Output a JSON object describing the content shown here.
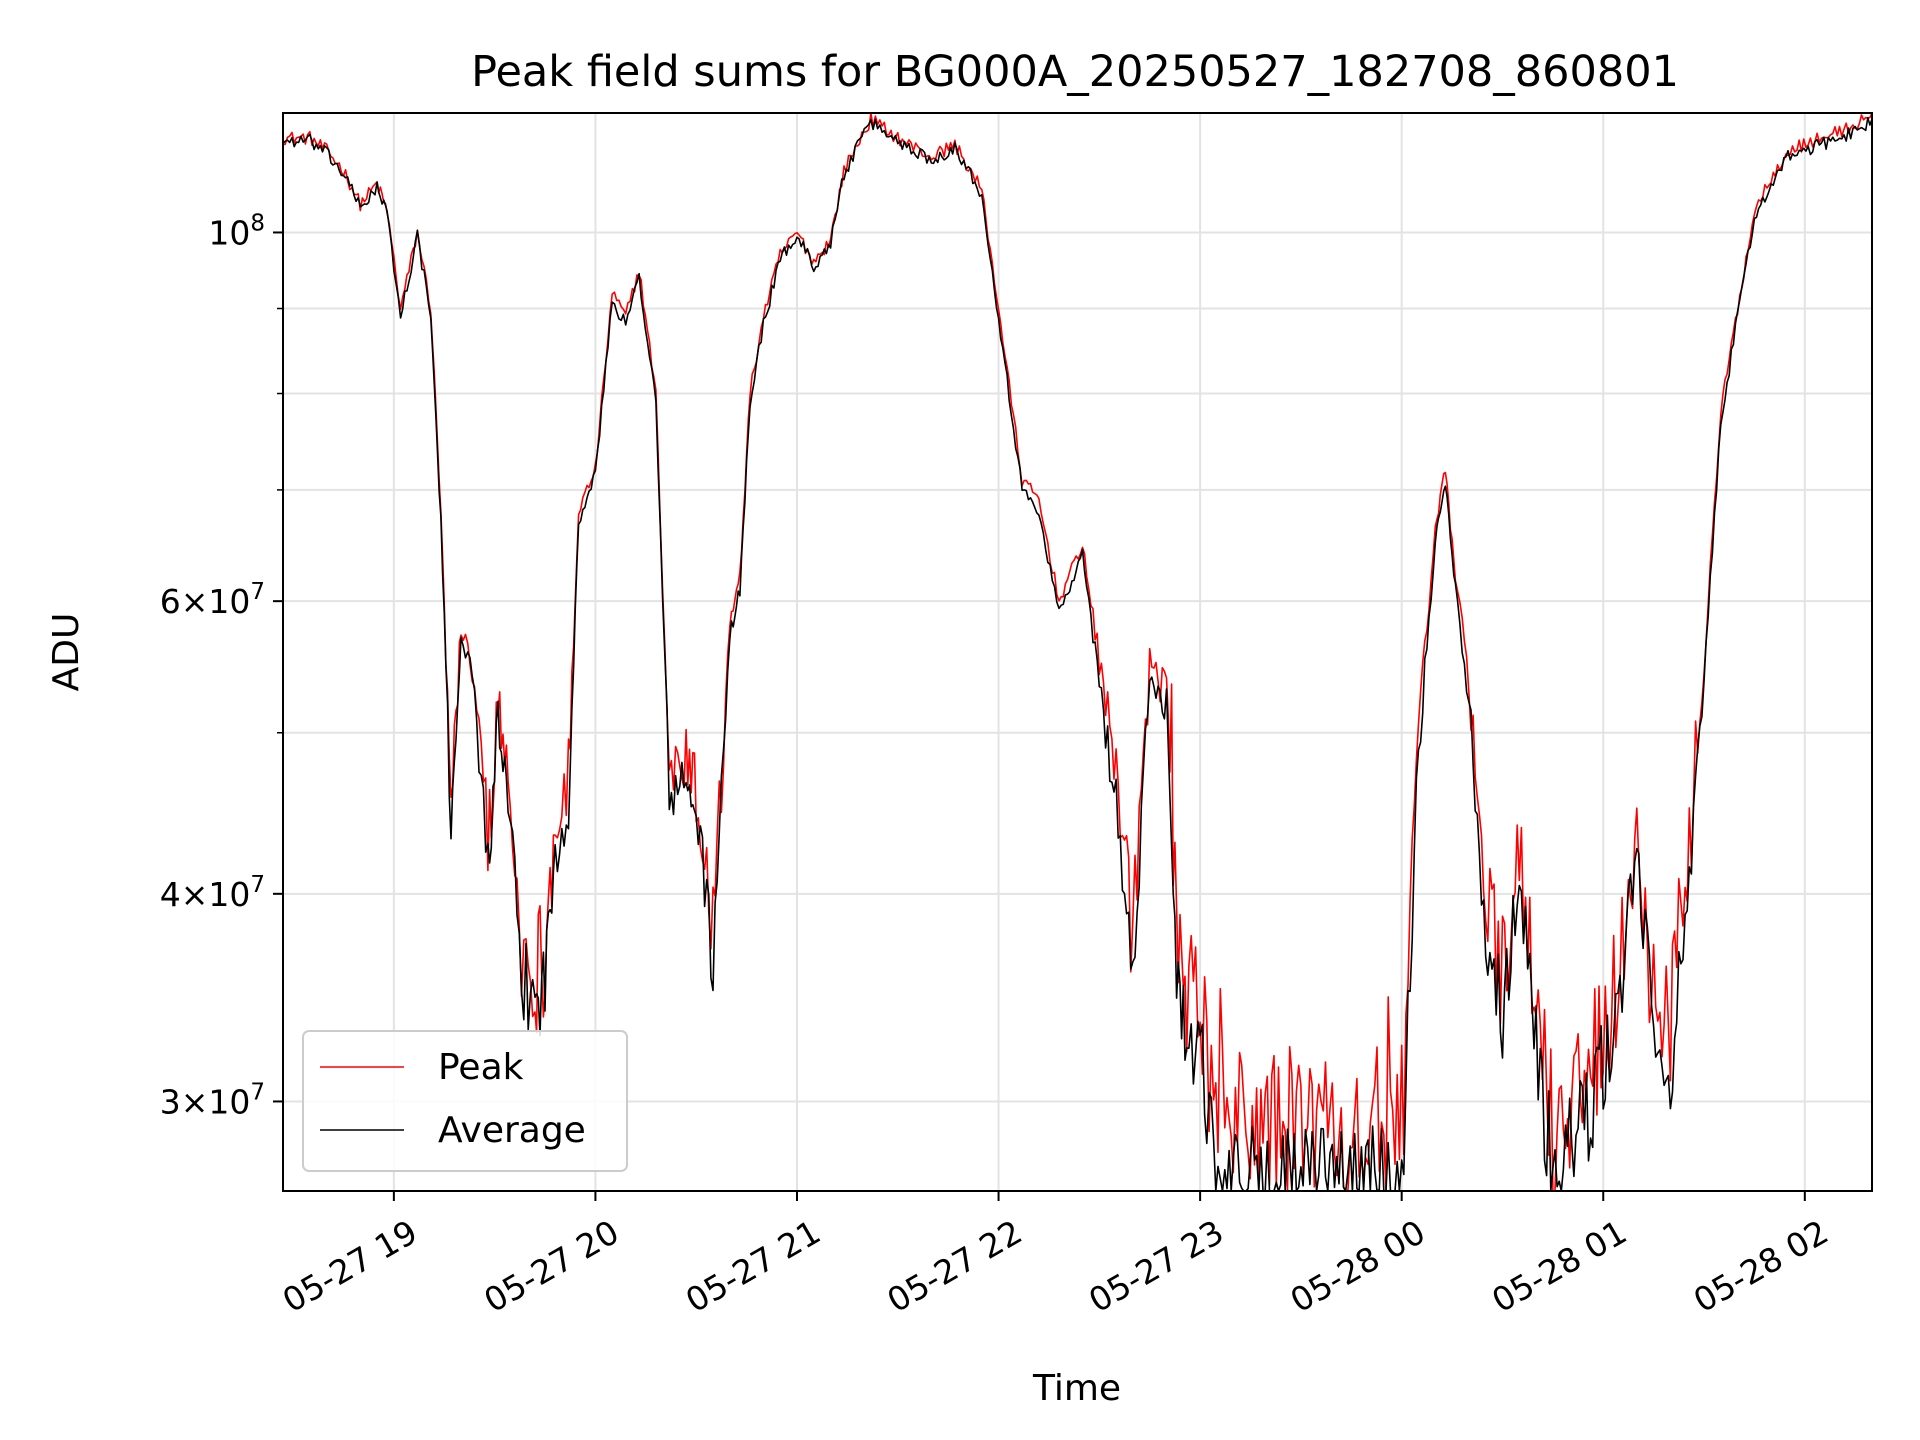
{
  "chart_data": {
    "type": "line",
    "title": "Peak field sums for BG000A_20250527_182708_860801",
    "xlabel": "Time",
    "ylabel": "ADU",
    "y_scale": "log",
    "grid": true,
    "legend_position": "lower-left",
    "xlim": [
      "2025-05-27 18:27",
      "2025-05-28 02:20"
    ],
    "ylim": [
      26500000,
      118000000
    ],
    "x_ticks": [
      "05-27 19",
      "05-27 20",
      "05-27 21",
      "05-27 22",
      "05-27 23",
      "05-28 00",
      "05-28 01",
      "05-28 02"
    ],
    "y_ticks": [
      {
        "base": "10",
        "exp": "8",
        "mult": ""
      },
      {
        "base": "10",
        "exp": "7",
        "mult": "6"
      },
      {
        "base": "10",
        "exp": "7",
        "mult": "4"
      },
      {
        "base": "10",
        "exp": "7",
        "mult": "3"
      }
    ],
    "series": [
      {
        "name": "Peak",
        "color": "#ff0000",
        "x": [
          "2025-05-27 18:27",
          "2025-05-27 18:35",
          "2025-05-27 18:40",
          "2025-05-27 18:45",
          "2025-05-27 18:50",
          "2025-05-27 18:55",
          "2025-05-27 18:58",
          "2025-05-27 19:02",
          "2025-05-27 19:07",
          "2025-05-27 19:11",
          "2025-05-27 19:14",
          "2025-05-27 19:17",
          "2025-05-27 19:20",
          "2025-05-27 19:24",
          "2025-05-27 19:28",
          "2025-05-27 19:31",
          "2025-05-27 19:34",
          "2025-05-27 19:38",
          "2025-05-27 19:42",
          "2025-05-27 19:45",
          "2025-05-27 19:48",
          "2025-05-27 19:52",
          "2025-05-27 19:55",
          "2025-05-27 20:00",
          "2025-05-27 20:05",
          "2025-05-27 20:09",
          "2025-05-27 20:13",
          "2025-05-27 20:18",
          "2025-05-27 20:22",
          "2025-05-27 20:27",
          "2025-05-27 20:30",
          "2025-05-27 20:35",
          "2025-05-27 20:40",
          "2025-05-27 20:43",
          "2025-05-27 20:46",
          "2025-05-27 20:50",
          "2025-05-27 20:55",
          "2025-05-27 21:00",
          "2025-05-27 21:05",
          "2025-05-27 21:10",
          "2025-05-27 21:14",
          "2025-05-27 21:18",
          "2025-05-27 21:22",
          "2025-05-27 21:30",
          "2025-05-27 21:40",
          "2025-05-27 21:47",
          "2025-05-27 21:55",
          "2025-05-27 22:00",
          "2025-05-27 22:07",
          "2025-05-27 22:12",
          "2025-05-27 22:18",
          "2025-05-27 22:25",
          "2025-05-27 22:30",
          "2025-05-27 22:35",
          "2025-05-27 22:40",
          "2025-05-27 22:45",
          "2025-05-27 22:50",
          "2025-05-27 22:53",
          "2025-05-27 22:56",
          "2025-05-27 23:00",
          "2025-05-27 23:04",
          "2025-05-27 23:08",
          "2025-05-27 23:13",
          "2025-05-27 23:20",
          "2025-05-27 23:30",
          "2025-05-27 23:40",
          "2025-05-27 23:50",
          "2025-05-28 00:00",
          "2025-05-28 00:05",
          "2025-05-28 00:10",
          "2025-05-28 00:13",
          "2025-05-28 00:16",
          "2025-05-28 00:20",
          "2025-05-28 00:25",
          "2025-05-28 00:30",
          "2025-05-28 00:35",
          "2025-05-28 00:40",
          "2025-05-28 00:45",
          "2025-05-28 00:50",
          "2025-05-28 00:55",
          "2025-05-28 01:00",
          "2025-05-28 01:05",
          "2025-05-28 01:10",
          "2025-05-28 01:15",
          "2025-05-28 01:20",
          "2025-05-28 01:25",
          "2025-05-28 01:30",
          "2025-05-28 01:35",
          "2025-05-28 01:40",
          "2025-05-28 01:45",
          "2025-05-28 01:50",
          "2025-05-28 01:55",
          "2025-05-28 02:05",
          "2025-05-28 02:15",
          "2025-05-28 02:20"
        ],
        "y": [
          114000000,
          114000000,
          112000000,
          109000000,
          104000000,
          107000000,
          103000000,
          90000000,
          100000000,
          90000000,
          68000000,
          45000000,
          58000000,
          54000000,
          43000000,
          52000000,
          47000000,
          37000000,
          36000000,
          37000000,
          44000000,
          47000000,
          68000000,
          72000000,
          92000000,
          89000000,
          95000000,
          80000000,
          47000000,
          48000000,
          46000000,
          38000000,
          58000000,
          62000000,
          80000000,
          89000000,
          97000000,
          100000000,
          96000000,
          99000000,
          109000000,
          113000000,
          117000000,
          114000000,
          111000000,
          113000000,
          106000000,
          90000000,
          71000000,
          69000000,
          60000000,
          65000000,
          55000000,
          47000000,
          37000000,
          55000000,
          53000000,
          38000000,
          34000000,
          35000000,
          29500000,
          29000000,
          29000000,
          29000000,
          29000000,
          29000000,
          29000000,
          29000000,
          50000000,
          66000000,
          72000000,
          62000000,
          54000000,
          40000000,
          36000000,
          42000000,
          34000000,
          28500000,
          30500000,
          31000000,
          33500000,
          36000000,
          44000000,
          34000000,
          34000000,
          40000000,
          55000000,
          78000000,
          90000000,
          103000000,
          108000000,
          112000000,
          114000000,
          116000000,
          118000000
        ]
      },
      {
        "name": "Average",
        "color": "#000000",
        "x": [
          "2025-05-27 18:27",
          "2025-05-27 18:35",
          "2025-05-27 18:40",
          "2025-05-27 18:45",
          "2025-05-27 18:50",
          "2025-05-27 18:55",
          "2025-05-27 18:58",
          "2025-05-27 19:02",
          "2025-05-27 19:07",
          "2025-05-27 19:11",
          "2025-05-27 19:14",
          "2025-05-27 19:17",
          "2025-05-27 19:20",
          "2025-05-27 19:24",
          "2025-05-27 19:28",
          "2025-05-27 19:31",
          "2025-05-27 19:34",
          "2025-05-27 19:38",
          "2025-05-27 19:42",
          "2025-05-27 19:45",
          "2025-05-27 19:48",
          "2025-05-27 19:52",
          "2025-05-27 19:55",
          "2025-05-27 20:00",
          "2025-05-27 20:05",
          "2025-05-27 20:09",
          "2025-05-27 20:13",
          "2025-05-27 20:18",
          "2025-05-27 20:22",
          "2025-05-27 20:27",
          "2025-05-27 20:30",
          "2025-05-27 20:35",
          "2025-05-27 20:40",
          "2025-05-27 20:43",
          "2025-05-27 20:46",
          "2025-05-27 20:50",
          "2025-05-27 20:55",
          "2025-05-27 21:00",
          "2025-05-27 21:05",
          "2025-05-27 21:10",
          "2025-05-27 21:14",
          "2025-05-27 21:18",
          "2025-05-27 21:22",
          "2025-05-27 21:30",
          "2025-05-27 21:40",
          "2025-05-27 21:47",
          "2025-05-27 21:55",
          "2025-05-27 22:00",
          "2025-05-27 22:07",
          "2025-05-27 22:12",
          "2025-05-27 22:18",
          "2025-05-27 22:25",
          "2025-05-27 22:30",
          "2025-05-27 22:35",
          "2025-05-27 22:40",
          "2025-05-27 22:45",
          "2025-05-27 22:50",
          "2025-05-27 22:53",
          "2025-05-27 22:56",
          "2025-05-27 23:00",
          "2025-05-27 23:04",
          "2025-05-27 23:08",
          "2025-05-27 23:13",
          "2025-05-27 23:20",
          "2025-05-27 23:30",
          "2025-05-27 23:40",
          "2025-05-27 23:50",
          "2025-05-28 00:00",
          "2025-05-28 00:05",
          "2025-05-28 00:10",
          "2025-05-28 00:13",
          "2025-05-28 00:16",
          "2025-05-28 00:20",
          "2025-05-28 00:25",
          "2025-05-28 00:30",
          "2025-05-28 00:35",
          "2025-05-28 00:40",
          "2025-05-28 00:45",
          "2025-05-28 00:50",
          "2025-05-28 00:55",
          "2025-05-28 01:00",
          "2025-05-28 01:05",
          "2025-05-28 01:10",
          "2025-05-28 01:15",
          "2025-05-28 01:20",
          "2025-05-28 01:25",
          "2025-05-28 01:30",
          "2025-05-28 01:35",
          "2025-05-28 01:40",
          "2025-05-28 01:45",
          "2025-05-28 01:50",
          "2025-05-28 01:55",
          "2025-05-28 02:05",
          "2025-05-28 02:15",
          "2025-05-28 02:20"
        ],
        "y": [
          113500000,
          113500000,
          111500000,
          108500000,
          103500000,
          106500000,
          102500000,
          89000000,
          99500000,
          89000000,
          67000000,
          44000000,
          57500000,
          53000000,
          41500000,
          51000000,
          45000000,
          35500000,
          34500000,
          35500000,
          42500000,
          45500000,
          67000000,
          71500000,
          91000000,
          88000000,
          94000000,
          79000000,
          46000000,
          46500000,
          45000000,
          36500000,
          57000000,
          61000000,
          79000000,
          88000000,
          96500000,
          99500000,
          95500000,
          98500000,
          108500000,
          112500000,
          116500000,
          113500000,
          110500000,
          112500000,
          105500000,
          89000000,
          70000000,
          68000000,
          59000000,
          64000000,
          53500000,
          45500000,
          35500000,
          54000000,
          52000000,
          36500000,
          32000000,
          33500000,
          27500000,
          27000000,
          27000000,
          27000000,
          27000000,
          27000000,
          27000000,
          27000000,
          49000000,
          65000000,
          71000000,
          61000000,
          52500000,
          38000000,
          34000000,
          41000000,
          32500000,
          27000000,
          28500000,
          29000000,
          31500000,
          34500000,
          43000000,
          32500000,
          31500000,
          38500000,
          54000000,
          77000000,
          89000000,
          102000000,
          107000000,
          111000000,
          113000000,
          115000000,
          117000000
        ]
      }
    ]
  }
}
